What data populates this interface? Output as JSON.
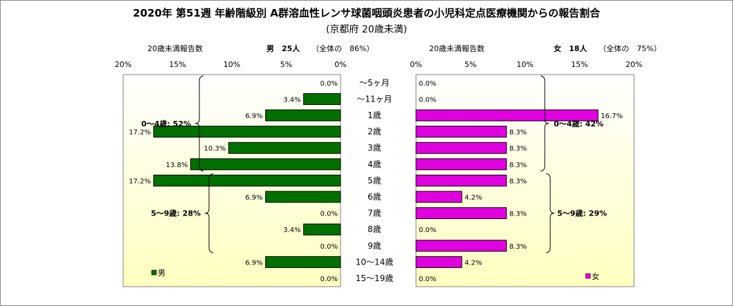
{
  "title": "2020年 第51週 年齢階級別 A群溶血性レンサ球菌咽頭炎患者の小児科定点医療機関からの報告割合",
  "subtitle": "(京都府 20歳未満)",
  "left_header": {
    "label": "20歳未満報告数",
    "sex_count": "男　25人",
    "share": "（全体の　86%）"
  },
  "right_header": {
    "label": "20歳未満報告数",
    "sex_count": "女　18人",
    "share": "（全体の　75%）"
  },
  "colors": {
    "male": "#007000",
    "female": "#e000e0",
    "plot_top": "#ffffff",
    "plot_bottom": "#ffffc0"
  },
  "chart_data": [
    {
      "type": "bar",
      "orientation": "horizontal",
      "direction": "right-to-left",
      "categories": [
        "～5ヶ月",
        "～11ヶ月",
        "1歳",
        "2歳",
        "3歳",
        "4歳",
        "5歳",
        "6歳",
        "7歳",
        "8歳",
        "9歳",
        "10～14歳",
        "15～19歳"
      ],
      "series": [
        {
          "name": "男",
          "values": [
            0.0,
            3.4,
            6.9,
            17.2,
            10.3,
            13.8,
            17.2,
            6.9,
            0.0,
            3.4,
            0.0,
            6.9,
            0.0
          ],
          "labels": [
            "0.0%",
            "3.4%",
            "6.9%",
            "17.2%",
            "10.3%",
            "13.8%",
            "17.2%",
            "6.9%",
            "0.0%",
            "3.4%",
            "0.0%",
            "6.9%",
            "0.0%"
          ]
        }
      ],
      "xlim": [
        0,
        20
      ],
      "xticks": [
        "20%",
        "15%",
        "10%",
        "5%",
        "0%"
      ],
      "legend": "bottom-left",
      "brackets": [
        {
          "label": "0～4歳: 52%",
          "from": "～5ヶ月",
          "to": "4歳"
        },
        {
          "label": "5～9歳: 28%",
          "from": "5歳",
          "to": "9歳"
        }
      ]
    },
    {
      "type": "bar",
      "orientation": "horizontal",
      "direction": "left-to-right",
      "categories": [
        "～5ヶ月",
        "～11ヶ月",
        "1歳",
        "2歳",
        "3歳",
        "4歳",
        "5歳",
        "6歳",
        "7歳",
        "8歳",
        "9歳",
        "10～14歳",
        "15～19歳"
      ],
      "series": [
        {
          "name": "女",
          "values": [
            0.0,
            0.0,
            16.7,
            8.3,
            8.3,
            8.3,
            8.3,
            4.2,
            8.3,
            0.0,
            8.3,
            4.2,
            0.0
          ],
          "labels": [
            "0.0%",
            "0.0%",
            "16.7%",
            "8.3%",
            "8.3%",
            "8.3%",
            "8.3%",
            "4.2%",
            "8.3%",
            "0.0%",
            "8.3%",
            "4.2%",
            "0.0%"
          ]
        }
      ],
      "xlim": [
        0,
        20
      ],
      "xticks": [
        "0%",
        "5%",
        "10%",
        "15%",
        "20%"
      ],
      "legend": "bottom-right",
      "brackets": [
        {
          "label": "0～4歳: 42%",
          "from": "～5ヶ月",
          "to": "4歳"
        },
        {
          "label": "5～9歳: 29%",
          "from": "5歳",
          "to": "9歳"
        }
      ]
    }
  ]
}
